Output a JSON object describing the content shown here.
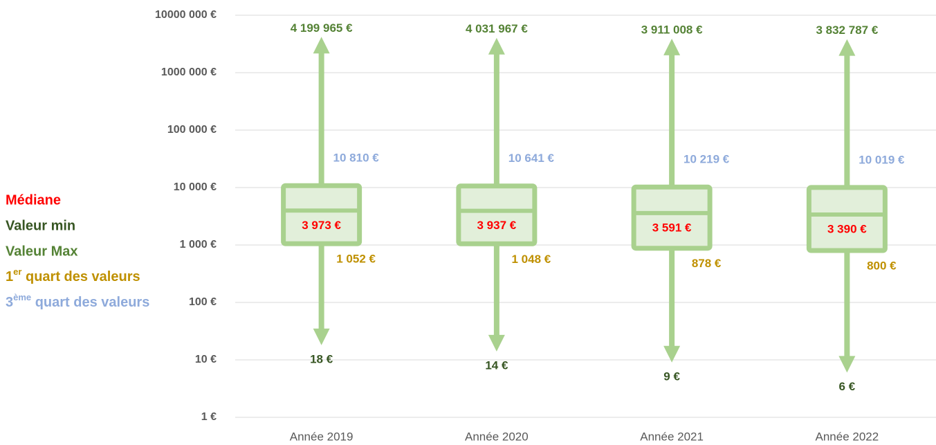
{
  "chart_data": {
    "type": "box",
    "categories": [
      "Année 2019",
      "Année 2020",
      "Année 2021",
      "Année 2022"
    ],
    "log_scale": true,
    "grid": true,
    "ylim": [
      1,
      10000000
    ],
    "yticks": [
      {
        "value": 1,
        "label": "1 €"
      },
      {
        "value": 10,
        "label": "10 €"
      },
      {
        "value": 100,
        "label": "100 €"
      },
      {
        "value": 1000,
        "label": "1 000 €"
      },
      {
        "value": 10000,
        "label": "10 000 €"
      },
      {
        "value": 100000,
        "label": "100 000 €"
      },
      {
        "value": 1000000,
        "label": "1000 000 €"
      },
      {
        "value": 10000000,
        "label": "10000 000 €"
      }
    ],
    "box_color": "#a9d18e",
    "box_fill": "#e2efda",
    "series": [
      {
        "name": "Médiane",
        "color": "#ff0000",
        "values": [
          3973,
          3937,
          3591,
          3390
        ],
        "value_labels": [
          "3 973 €",
          "3 937 €",
          "3 591 €",
          "3 390 €"
        ]
      },
      {
        "name": "Valeur min",
        "color": "#375623",
        "values": [
          18,
          14,
          9,
          6
        ],
        "value_labels": [
          "18 €",
          "14 €",
          "9 €",
          "6 €"
        ]
      },
      {
        "name": "Valeur Max",
        "color": "#548235",
        "values": [
          4199965,
          4031967,
          3911008,
          3832787
        ],
        "value_labels": [
          "4 199 965 €",
          "4 031 967 €",
          "3 911 008 €",
          "3 832 787 €"
        ]
      },
      {
        "name": [
          "1",
          "er",
          " quart des valeurs"
        ],
        "color": "#bf9000",
        "values": [
          1052,
          1048,
          878,
          800
        ],
        "value_labels": [
          "1 052 €",
          "1 048 €",
          "878 €",
          "800 €"
        ]
      },
      {
        "name": [
          "3",
          "ème",
          " quart des valeurs"
        ],
        "color": "#8eaadb",
        "values": [
          10810,
          10641,
          10219,
          10019
        ],
        "value_labels": [
          "10 810 €",
          "10 641 €",
          "10 219 €",
          "10 019 €"
        ]
      }
    ]
  }
}
